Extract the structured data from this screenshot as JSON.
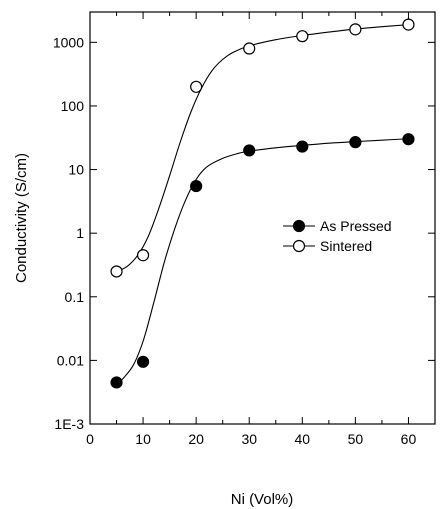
{
  "chart_data": {
    "type": "scatter",
    "xlabel": "Ni (Vol%)",
    "ylabel": "Conductivity (S/cm)",
    "xlim": [
      0,
      65
    ],
    "ylim": [
      0.001,
      3000
    ],
    "yscale": "log",
    "x_ticks": [
      0,
      10,
      20,
      30,
      40,
      50,
      60
    ],
    "y_ticks": [
      {
        "value": 0.001,
        "label": "1E-3"
      },
      {
        "value": 0.01,
        "label": "0.01"
      },
      {
        "value": 0.1,
        "label": "0.1"
      },
      {
        "value": 1,
        "label": "1"
      },
      {
        "value": 10,
        "label": "10"
      },
      {
        "value": 100,
        "label": "100"
      },
      {
        "value": 1000,
        "label": "1000"
      }
    ],
    "grid": false,
    "legend_position": "right-middle",
    "series": [
      {
        "name": "As Pressed",
        "marker": "filled-circle",
        "x": [
          5,
          10,
          20,
          30,
          40,
          50,
          60
        ],
        "y": [
          0.0045,
          0.0095,
          5.5,
          20,
          23,
          27,
          30
        ]
      },
      {
        "name": "Sintered",
        "marker": "open-circle",
        "x": [
          5,
          10,
          20,
          30,
          40,
          50,
          60
        ],
        "y": [
          0.25,
          0.45,
          200,
          800,
          1250,
          1600,
          1900
        ]
      }
    ],
    "fit_curves": [
      {
        "series": "As Pressed",
        "points": [
          [
            5,
            0.004
          ],
          [
            8,
            0.008
          ],
          [
            10,
            0.02
          ],
          [
            12,
            0.08
          ],
          [
            14,
            0.35
          ],
          [
            16,
            1.2
          ],
          [
            18,
            3.3
          ],
          [
            20,
            7
          ],
          [
            22,
            11
          ],
          [
            25,
            15
          ],
          [
            28,
            18
          ],
          [
            30,
            19.5
          ],
          [
            35,
            22
          ],
          [
            40,
            24
          ],
          [
            45,
            26
          ],
          [
            50,
            27.5
          ],
          [
            55,
            29
          ],
          [
            60,
            30.5
          ]
        ]
      },
      {
        "series": "Sintered",
        "points": [
          [
            5,
            0.25
          ],
          [
            7,
            0.3
          ],
          [
            9,
            0.45
          ],
          [
            11,
            0.9
          ],
          [
            13,
            2.5
          ],
          [
            15,
            8
          ],
          [
            17,
            27
          ],
          [
            19,
            80
          ],
          [
            21,
            190
          ],
          [
            23,
            360
          ],
          [
            25,
            540
          ],
          [
            27,
            700
          ],
          [
            30,
            880
          ],
          [
            35,
            1100
          ],
          [
            40,
            1280
          ],
          [
            45,
            1450
          ],
          [
            50,
            1620
          ],
          [
            55,
            1760
          ],
          [
            60,
            1900
          ]
        ]
      }
    ]
  }
}
